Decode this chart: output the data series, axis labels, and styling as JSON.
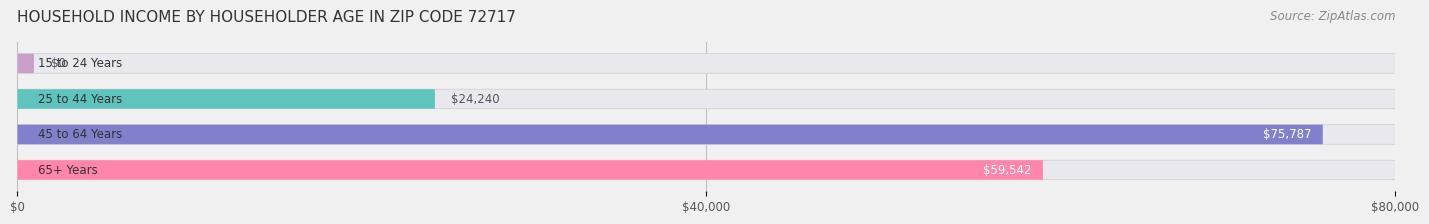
{
  "title": "HOUSEHOLD INCOME BY HOUSEHOLDER AGE IN ZIP CODE 72717",
  "source": "Source: ZipAtlas.com",
  "categories": [
    "15 to 24 Years",
    "25 to 44 Years",
    "45 to 64 Years",
    "65+ Years"
  ],
  "values": [
    0,
    24240,
    75787,
    59542
  ],
  "bar_colors": [
    "#c9a0c8",
    "#5fc4be",
    "#8080cc",
    "#ff85aa"
  ],
  "background_color": "#f0f0f0",
  "bar_bg_color": "#e8e8ee",
  "xlim": [
    0,
    80000
  ],
  "xticks": [
    0,
    40000,
    80000
  ],
  "xtick_labels": [
    "$0",
    "$40,000",
    "$80,000"
  ],
  "value_labels": [
    "$0",
    "$24,240",
    "$75,787",
    "$59,542"
  ],
  "title_fontsize": 11,
  "source_fontsize": 8.5,
  "label_fontsize": 8.5,
  "tick_fontsize": 8.5
}
